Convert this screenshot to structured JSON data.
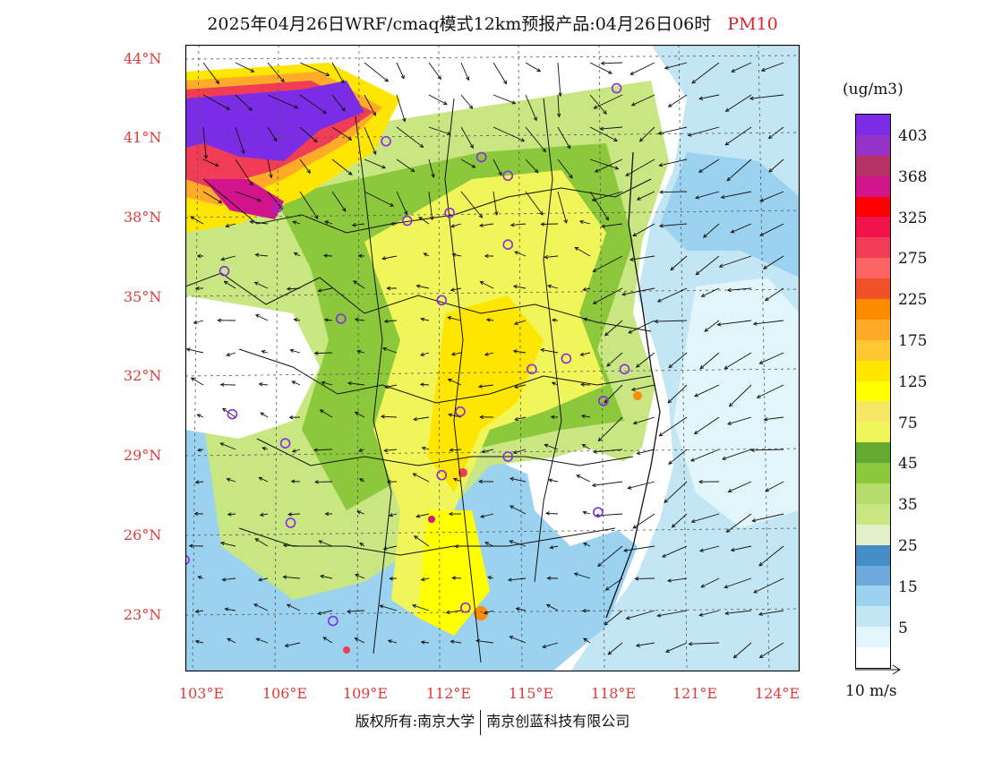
{
  "title": {
    "main": "2025年04月26日WRF/cmaq模式12km预报产品:04月26日06时",
    "species": "PM10"
  },
  "lat_labels": [
    "44°N",
    "41°N",
    "38°N",
    "35°N",
    "32°N",
    "29°N",
    "26°N",
    "23°N"
  ],
  "lon_labels": [
    "103°E",
    "106°E",
    "109°E",
    "112°E",
    "115°E",
    "118°E",
    "121°E",
    "124°E"
  ],
  "colorbar": {
    "unit": "(ug/m3)",
    "colors": [
      "#7b2de6",
      "#9632c8",
      "#b43264",
      "#d2148c",
      "#ff0000",
      "#f0144b",
      "#f03c55",
      "#ff6464",
      "#f05028",
      "#ff8c00",
      "#ffaa28",
      "#ffc832",
      "#ffe600",
      "#ffff00",
      "#f5e664",
      "#f0f55a",
      "#64aa32",
      "#8cc83c",
      "#b9dc6e",
      "#c8e682",
      "#e1f0c8",
      "#468cc8",
      "#6eaadc",
      "#9bd2f0",
      "#c3e6f5",
      "#e1f5fa",
      "#ffffff"
    ],
    "labels": [
      "403",
      "368",
      "325",
      "275",
      "225",
      "175",
      "125",
      "75",
      "45",
      "35",
      "25",
      "15",
      "5"
    ]
  },
  "wind_reference": {
    "label": "10 m/s"
  },
  "stations": [
    {
      "lon": 119.0,
      "lat": 42.9
    },
    {
      "lon": 110.3,
      "lat": 40.9
    },
    {
      "lon": 113.9,
      "lat": 40.3
    },
    {
      "lon": 114.9,
      "lat": 39.6
    },
    {
      "lon": 106.2,
      "lat": 38.4
    },
    {
      "lon": 111.1,
      "lat": 37.9
    },
    {
      "lon": 112.7,
      "lat": 38.2
    },
    {
      "lon": 114.9,
      "lat": 37.0
    },
    {
      "lon": 104.2,
      "lat": 36.0
    },
    {
      "lon": 108.6,
      "lat": 34.2
    },
    {
      "lon": 112.4,
      "lat": 34.9
    },
    {
      "lon": 117.1,
      "lat": 32.7
    },
    {
      "lon": 115.8,
      "lat": 32.3
    },
    {
      "lon": 119.3,
      "lat": 32.3
    },
    {
      "lon": 118.5,
      "lat": 31.1
    },
    {
      "lon": 104.5,
      "lat": 30.6
    },
    {
      "lon": 113.1,
      "lat": 30.7
    },
    {
      "lon": 106.5,
      "lat": 29.5
    },
    {
      "lon": 114.9,
      "lat": 29.0
    },
    {
      "lon": 112.4,
      "lat": 28.3
    },
    {
      "lon": 118.3,
      "lat": 26.9
    },
    {
      "lon": 106.7,
      "lat": 26.5
    },
    {
      "lon": 102.7,
      "lat": 25.1
    },
    {
      "lon": 113.3,
      "lat": 23.3
    },
    {
      "lon": 108.3,
      "lat": 22.8
    }
  ],
  "footer": {
    "left": "版权所有:南京大学",
    "right": "南京创蓝科技有限公司"
  }
}
